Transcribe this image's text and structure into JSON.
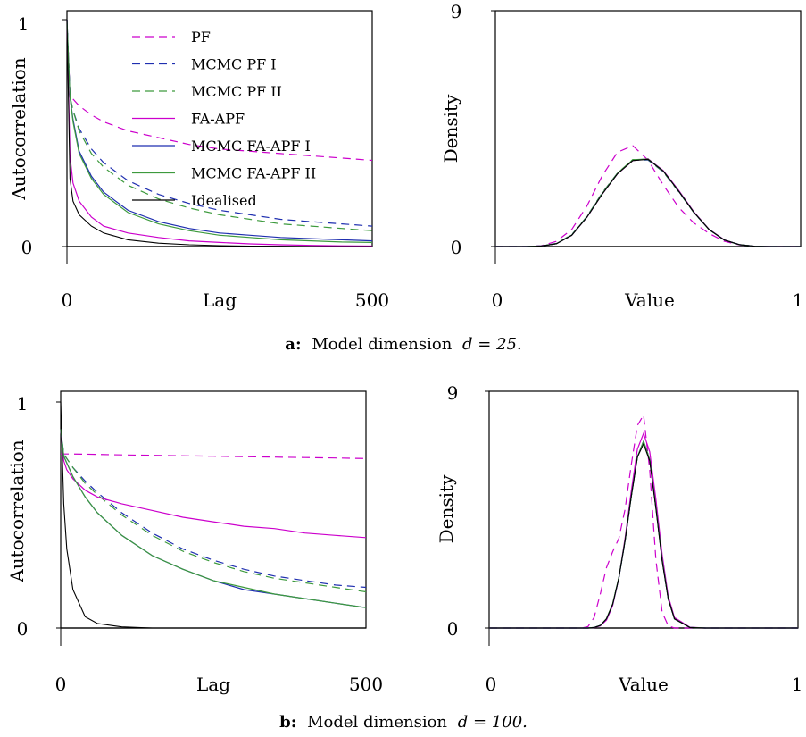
{
  "figure": {
    "captions": [
      {
        "label": "a:",
        "text": "Model dimension",
        "math": "d = 25."
      },
      {
        "label": "b:",
        "text": "Model dimension",
        "math": "d = 100."
      }
    ]
  },
  "colors": {
    "PF": "#cc00cc",
    "MCMC PF I": "#1f2fb0",
    "MCMC PF II": "#3d9a3d",
    "FA-APF": "#cc00cc",
    "MCMC FA-APF I": "#1f2fb0",
    "MCMC FA-APF II": "#3d9a3d",
    "Idealised": "#000000"
  },
  "chart_data": [
    {
      "type": "line",
      "panel": "a-left",
      "xlabel": "Lag",
      "ylabel": "Autocorrelation",
      "xlim": [
        0,
        500
      ],
      "ylim": [
        0,
        1
      ],
      "xticks": [
        "0",
        "500"
      ],
      "yticks": [
        "0",
        "1"
      ],
      "legend": "top-right",
      "x": [
        0,
        5,
        10,
        20,
        40,
        60,
        100,
        150,
        200,
        250,
        300,
        350,
        400,
        450,
        500
      ],
      "series": [
        {
          "name": "PF",
          "dash": true,
          "values": [
            1.0,
            0.67,
            0.65,
            0.62,
            0.58,
            0.55,
            0.51,
            0.48,
            0.45,
            0.43,
            0.42,
            0.41,
            0.4,
            0.39,
            0.38
          ]
        },
        {
          "name": "MCMC PF I",
          "dash": true,
          "values": [
            1.0,
            0.66,
            0.6,
            0.52,
            0.43,
            0.37,
            0.29,
            0.23,
            0.19,
            0.16,
            0.14,
            0.12,
            0.11,
            0.1,
            0.09
          ]
        },
        {
          "name": "MCMC PF II",
          "dash": true,
          "values": [
            1.0,
            0.66,
            0.6,
            0.51,
            0.41,
            0.35,
            0.27,
            0.21,
            0.17,
            0.14,
            0.12,
            0.1,
            0.09,
            0.08,
            0.07
          ]
        },
        {
          "name": "FA-APF",
          "dash": false,
          "values": [
            1.0,
            0.4,
            0.28,
            0.2,
            0.13,
            0.09,
            0.06,
            0.04,
            0.025,
            0.018,
            0.012,
            0.008,
            0.005,
            0.003,
            0.002
          ]
        },
        {
          "name": "MCMC FA-APF I",
          "dash": false,
          "values": [
            1.0,
            0.66,
            0.56,
            0.42,
            0.31,
            0.24,
            0.16,
            0.11,
            0.08,
            0.06,
            0.05,
            0.04,
            0.035,
            0.03,
            0.025
          ]
        },
        {
          "name": "MCMC FA-APF II",
          "dash": false,
          "values": [
            1.0,
            0.66,
            0.55,
            0.41,
            0.3,
            0.23,
            0.15,
            0.1,
            0.07,
            0.05,
            0.04,
            0.03,
            0.025,
            0.02,
            0.018
          ]
        },
        {
          "name": "Idealised",
          "dash": false,
          "values": [
            1.0,
            0.3,
            0.2,
            0.14,
            0.09,
            0.06,
            0.03,
            0.015,
            0.008,
            0.004,
            0.002,
            0.001,
            0.0,
            0.0,
            0.0
          ]
        }
      ]
    },
    {
      "type": "line",
      "panel": "a-right",
      "xlabel": "Value",
      "ylabel": "Density",
      "xlim": [
        0,
        1
      ],
      "ylim": [
        0,
        9
      ],
      "xticks": [
        "0",
        "1"
      ],
      "yticks": [
        "0",
        "9"
      ],
      "x": [
        0.0,
        0.1,
        0.15,
        0.2,
        0.25,
        0.3,
        0.35,
        0.4,
        0.45,
        0.5,
        0.55,
        0.6,
        0.65,
        0.7,
        0.75,
        0.8,
        0.85,
        0.9,
        0.95,
        1.0
      ],
      "series": [
        {
          "name": "PF",
          "dash": true,
          "values": [
            0,
            0,
            0.03,
            0.2,
            0.65,
            1.55,
            2.7,
            3.6,
            3.85,
            3.3,
            2.35,
            1.5,
            0.9,
            0.5,
            0.2,
            0.06,
            0.01,
            0,
            0,
            0
          ]
        },
        {
          "name": "MCMC PF I",
          "dash": true,
          "values": [
            0,
            0,
            0.02,
            0.12,
            0.45,
            1.15,
            2.05,
            2.8,
            3.3,
            3.3,
            2.85,
            2.1,
            1.3,
            0.65,
            0.25,
            0.07,
            0.01,
            0,
            0,
            0
          ]
        },
        {
          "name": "MCMC PF II",
          "dash": true,
          "values": [
            0,
            0,
            0.02,
            0.12,
            0.45,
            1.15,
            2.05,
            2.8,
            3.32,
            3.32,
            2.85,
            2.1,
            1.3,
            0.65,
            0.25,
            0.07,
            0.01,
            0,
            0,
            0
          ]
        },
        {
          "name": "FA-APF",
          "dash": false,
          "values": [
            0,
            0,
            0.02,
            0.11,
            0.43,
            1.12,
            2.0,
            2.78,
            3.28,
            3.35,
            2.9,
            2.15,
            1.33,
            0.66,
            0.26,
            0.07,
            0.01,
            0,
            0,
            0
          ]
        },
        {
          "name": "MCMC FA-APF I",
          "dash": false,
          "values": [
            0,
            0,
            0.02,
            0.11,
            0.44,
            1.13,
            2.02,
            2.79,
            3.3,
            3.33,
            2.88,
            2.12,
            1.31,
            0.65,
            0.25,
            0.07,
            0.01,
            0,
            0,
            0
          ]
        },
        {
          "name": "MCMC FA-APF II",
          "dash": false,
          "values": [
            0,
            0,
            0.02,
            0.11,
            0.44,
            1.13,
            2.02,
            2.8,
            3.31,
            3.34,
            2.88,
            2.12,
            1.31,
            0.65,
            0.25,
            0.07,
            0.01,
            0,
            0,
            0
          ]
        },
        {
          "name": "Idealised",
          "dash": false,
          "values": [
            0,
            0,
            0.02,
            0.11,
            0.43,
            1.12,
            2.0,
            2.78,
            3.28,
            3.33,
            2.88,
            2.12,
            1.31,
            0.65,
            0.25,
            0.07,
            0.01,
            0,
            0,
            0
          ]
        }
      ]
    },
    {
      "type": "line",
      "panel": "b-left",
      "xlabel": "Lag",
      "ylabel": "Autocorrelation",
      "xlim": [
        0,
        500
      ],
      "ylim": [
        0,
        1
      ],
      "xticks": [
        "0",
        "500"
      ],
      "yticks": [
        "0",
        "1"
      ],
      "x": [
        0,
        5,
        10,
        20,
        40,
        60,
        100,
        150,
        200,
        250,
        300,
        350,
        400,
        450,
        500
      ],
      "series": [
        {
          "name": "PF",
          "dash": true,
          "values": [
            0.77,
            0.77,
            0.77,
            0.77,
            0.769,
            0.768,
            0.766,
            0.764,
            0.762,
            0.76,
            0.758,
            0.756,
            0.754,
            0.752,
            0.75
          ]
        },
        {
          "name": "MCMC PF I",
          "dash": true,
          "values": [
            0.88,
            0.77,
            0.75,
            0.71,
            0.65,
            0.6,
            0.51,
            0.42,
            0.35,
            0.3,
            0.26,
            0.23,
            0.21,
            0.19,
            0.18
          ]
        },
        {
          "name": "MCMC PF II",
          "dash": true,
          "values": [
            0.88,
            0.77,
            0.75,
            0.71,
            0.64,
            0.59,
            0.5,
            0.41,
            0.34,
            0.29,
            0.25,
            0.22,
            0.2,
            0.18,
            0.16
          ]
        },
        {
          "name": "FA-APF",
          "dash": false,
          "values": [
            0.88,
            0.74,
            0.7,
            0.66,
            0.61,
            0.58,
            0.55,
            0.52,
            0.49,
            0.47,
            0.45,
            0.44,
            0.42,
            0.41,
            0.4
          ]
        },
        {
          "name": "MCMC FA-APF I",
          "dash": false,
          "values": [
            0.88,
            0.76,
            0.73,
            0.67,
            0.58,
            0.51,
            0.41,
            0.32,
            0.26,
            0.21,
            0.17,
            0.15,
            0.13,
            0.11,
            0.09
          ]
        },
        {
          "name": "MCMC FA-APF II",
          "dash": false,
          "values": [
            0.88,
            0.76,
            0.73,
            0.67,
            0.58,
            0.51,
            0.41,
            0.32,
            0.26,
            0.21,
            0.18,
            0.15,
            0.13,
            0.11,
            0.09
          ]
        },
        {
          "name": "Idealised",
          "dash": false,
          "values": [
            1.0,
            0.55,
            0.35,
            0.17,
            0.05,
            0.02,
            0.005,
            0.0,
            0.0,
            0.0,
            0.0,
            0.0,
            0.0,
            0.0,
            0.0
          ]
        }
      ]
    },
    {
      "type": "line",
      "panel": "b-right",
      "xlabel": "Value",
      "ylabel": "Density",
      "xlim": [
        0,
        1
      ],
      "ylim": [
        0,
        9
      ],
      "xticks": [
        "0",
        "1"
      ],
      "yticks": [
        "0",
        "9"
      ],
      "x": [
        0.0,
        0.3,
        0.32,
        0.34,
        0.36,
        0.38,
        0.4,
        0.42,
        0.44,
        0.46,
        0.48,
        0.5,
        0.52,
        0.54,
        0.56,
        0.58,
        0.6,
        0.65,
        0.7,
        1.0
      ],
      "series": [
        {
          "name": "PF",
          "dash": true,
          "values": [
            0,
            0,
            0.05,
            0.4,
            1.3,
            2.3,
            2.9,
            3.4,
            4.5,
            6.2,
            7.7,
            8.1,
            6.0,
            2.6,
            0.6,
            0.08,
            0.0,
            0,
            0,
            0
          ]
        },
        {
          "name": "MCMC PF I",
          "dash": true,
          "values": [
            0,
            0,
            0,
            0.02,
            0.1,
            0.35,
            0.9,
            1.9,
            3.3,
            5.0,
            6.5,
            7.1,
            6.4,
            4.6,
            2.6,
            1.1,
            0.35,
            0.02,
            0,
            0
          ]
        },
        {
          "name": "MCMC PF II",
          "dash": true,
          "values": [
            0,
            0,
            0,
            0.02,
            0.1,
            0.35,
            0.9,
            1.9,
            3.3,
            5.0,
            6.5,
            7.1,
            6.4,
            4.6,
            2.6,
            1.1,
            0.35,
            0.02,
            0,
            0
          ]
        },
        {
          "name": "FA-APF",
          "dash": false,
          "values": [
            0,
            0,
            0,
            0.01,
            0.08,
            0.3,
            0.85,
            1.9,
            3.4,
            5.2,
            6.8,
            7.4,
            6.7,
            4.9,
            2.8,
            1.2,
            0.4,
            0.03,
            0,
            0
          ]
        },
        {
          "name": "MCMC FA-APF I",
          "dash": false,
          "values": [
            0,
            0,
            0,
            0.02,
            0.1,
            0.35,
            0.9,
            1.9,
            3.3,
            5.0,
            6.5,
            7.1,
            6.4,
            4.6,
            2.6,
            1.1,
            0.35,
            0.02,
            0,
            0
          ]
        },
        {
          "name": "MCMC FA-APF II",
          "dash": false,
          "values": [
            0,
            0,
            0,
            0.02,
            0.1,
            0.36,
            0.92,
            1.92,
            3.32,
            5.0,
            6.5,
            7.1,
            6.4,
            4.6,
            2.6,
            1.1,
            0.35,
            0.02,
            0,
            0
          ]
        },
        {
          "name": "Idealised",
          "dash": false,
          "values": [
            0,
            0,
            0,
            0.02,
            0.1,
            0.35,
            0.9,
            1.9,
            3.3,
            5.0,
            6.5,
            7.0,
            6.35,
            4.55,
            2.55,
            1.1,
            0.35,
            0.02,
            0,
            0
          ]
        }
      ]
    }
  ]
}
